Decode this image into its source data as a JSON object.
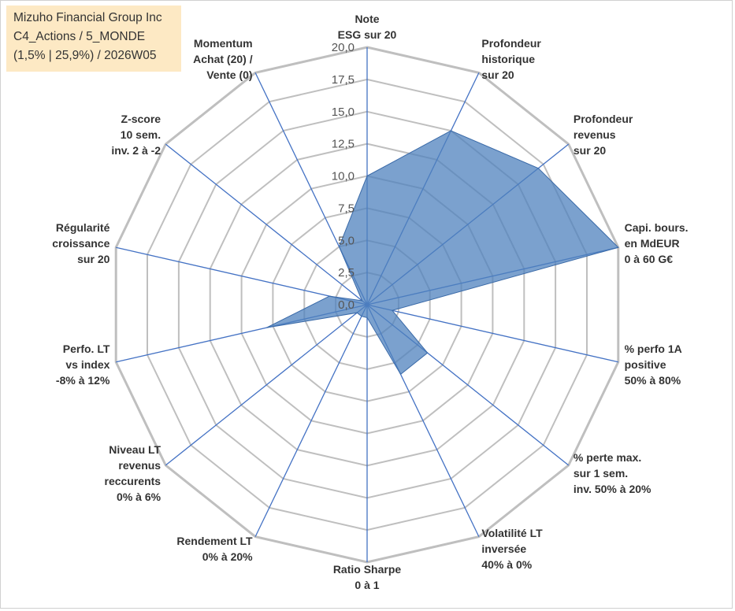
{
  "title_box": {
    "line1": "Mizuho Financial Group Inc",
    "line2": "C4_Actions / 5_MONDE",
    "line3": "(1,5% | 25,9%) / 2026W05"
  },
  "colors": {
    "grid": "#bfbfbf",
    "spoke": "#4472c4",
    "fill": "#4f81bd",
    "label": "#333333"
  },
  "chart_data": {
    "type": "radar",
    "title": "Mizuho Financial Group Inc",
    "rmax": 20,
    "tick_step": 2.5,
    "tick_labels": [
      "0,0",
      "2,5",
      "5,0",
      "7,5",
      "10,0",
      "12,5",
      "15,0",
      "17,5",
      "20,0"
    ],
    "axes": [
      {
        "label": [
          "Note",
          "ESG sur 20"
        ],
        "value": 10.0
      },
      {
        "label": [
          "Profondeur",
          "historique",
          "sur 20"
        ],
        "value": 15.0
      },
      {
        "label": [
          "Profondeur",
          "revenus",
          "sur 20"
        ],
        "value": 17.0
      },
      {
        "label": [
          "Capi. bours.",
          "en MdEUR",
          "0 à 60 G€"
        ],
        "value": 20.0
      },
      {
        "label": [
          "% perfo 1A",
          "positive",
          "50% à 80%"
        ],
        "value": 2.0
      },
      {
        "label": [
          "% perte max.",
          "sur 1 sem.",
          "inv. 50% à 20%"
        ],
        "value": 6.0
      },
      {
        "label": [
          "Volatilité LT",
          "inversée",
          "40% à 0%"
        ],
        "value": 6.0
      },
      {
        "label": [
          "Ratio Sharpe",
          "0 à 1"
        ],
        "value": 1.0
      },
      {
        "label": [
          "Rendement LT",
          "0% à 20%"
        ],
        "value": 1.0
      },
      {
        "label": [
          "Niveau LT",
          "revenus",
          "reccurents",
          "0% à 6%"
        ],
        "value": 1.0
      },
      {
        "label": [
          "Perfo. LT",
          "vs index",
          "-8% à 12%"
        ],
        "value": 8.0
      },
      {
        "label": [
          "Régularité",
          "croissance",
          "sur 20"
        ],
        "value": 3.0
      },
      {
        "label": [
          "Z-score",
          "10 sem.",
          "inv. 2 à -2"
        ],
        "value": 0.5
      },
      {
        "label": [
          "Momentum",
          "Achat (20) /",
          "Vente (0)"
        ],
        "value": 5.0
      }
    ]
  }
}
